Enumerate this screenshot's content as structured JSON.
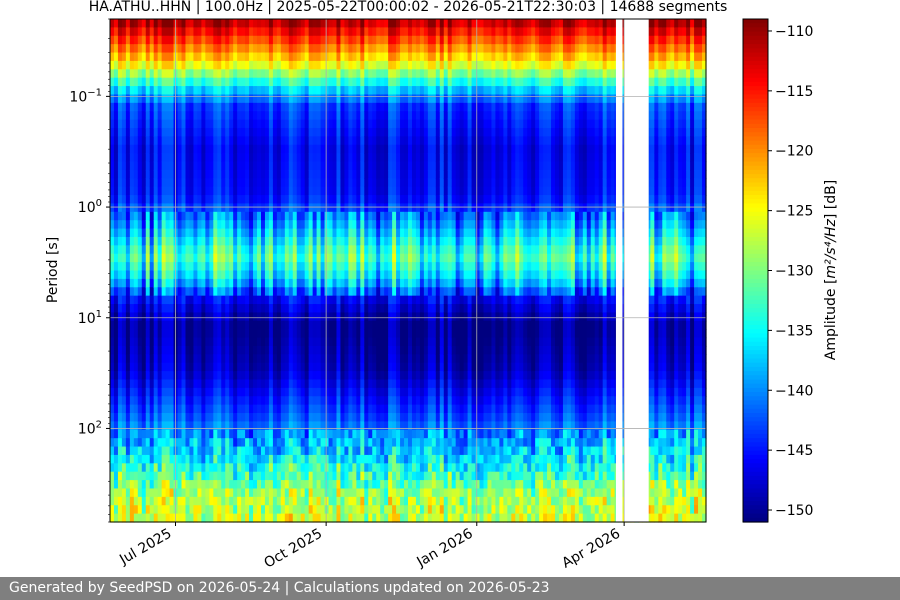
{
  "chart_data": {
    "type": "heatmap",
    "title": "HA.ATHU..HHN | 100.0Hz | 2025-05-22T00:00:02 - 2026-05-21T22:30:03 | 14688 segments",
    "ylabel": "Period [s]",
    "y_scale": "log",
    "y_inverted": true,
    "y_range": [
      0.02,
      700
    ],
    "y_ticks": [
      {
        "value": 0.1,
        "base": "10",
        "exp": "−1"
      },
      {
        "value": 1,
        "base": "10",
        "exp": "0"
      },
      {
        "value": 10,
        "base": "10",
        "exp": "1"
      },
      {
        "value": 100,
        "base": "10",
        "exp": "2"
      }
    ],
    "x_range": [
      "2025-05-22",
      "2026-05-21"
    ],
    "x_ticks": [
      {
        "date": "2025-07-01",
        "label": "Jul 2025"
      },
      {
        "date": "2025-10-01",
        "label": "Oct 2025"
      },
      {
        "date": "2026-01-01",
        "label": "Jan 2026"
      },
      {
        "date": "2026-04-01",
        "label": "Apr 2026"
      }
    ],
    "grid": true,
    "data_gaps": [
      [
        "2026-03-27",
        "2026-03-31"
      ],
      [
        "2026-04-01",
        "2026-04-16"
      ]
    ],
    "colorbar": {
      "colormap": "jet",
      "label_prefix": "Amplitude [",
      "label_math": "m²/s⁴/Hz",
      "label_suffix": "] [dB]",
      "range": [
        -151,
        -109
      ],
      "ticks": [
        -110,
        -115,
        -120,
        -125,
        -130,
        -135,
        -140,
        -145,
        -150
      ]
    },
    "period_profile": [
      {
        "period": 0.02,
        "db": -110
      },
      {
        "period": 0.03,
        "db": -116
      },
      {
        "period": 0.05,
        "db": -124
      },
      {
        "period": 0.08,
        "db": -135
      },
      {
        "period": 0.12,
        "db": -143
      },
      {
        "period": 0.3,
        "db": -146
      },
      {
        "period": 0.8,
        "db": -145
      },
      {
        "period": 1.5,
        "db": -139
      },
      {
        "period": 2.8,
        "db": -132
      },
      {
        "period": 4.5,
        "db": -137
      },
      {
        "period": 7,
        "db": -146
      },
      {
        "period": 12,
        "db": -150
      },
      {
        "period": 30,
        "db": -148
      },
      {
        "period": 80,
        "db": -142
      },
      {
        "period": 200,
        "db": -135
      },
      {
        "period": 400,
        "db": -128
      },
      {
        "period": 700,
        "db": -126
      }
    ]
  },
  "footer": {
    "text": "Generated by SeedPSD on 2026-05-24 | Calculations updated on 2026-05-23"
  }
}
